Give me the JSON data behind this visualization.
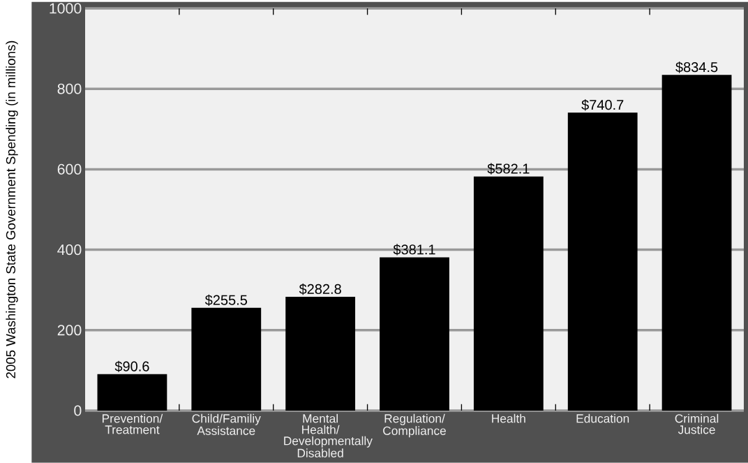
{
  "chart_data": {
    "type": "bar",
    "ylabel": "2005 Washington State Government Spending (in millions)",
    "categories": [
      "Prevention/ Treatment",
      "Child/Familiy Assistance",
      "Mental Health/ Developmentally Disabled",
      "Regulation/ Compliance",
      "Health",
      "Education",
      "Criminal Justice"
    ],
    "values": [
      90.6,
      255.5,
      282.8,
      381.1,
      582.1,
      740.7,
      834.5
    ],
    "value_labels": [
      "$90.6",
      "$255.5",
      "$282.8",
      "$381.1",
      "$582.1",
      "$740.7",
      "$834.5"
    ],
    "color": "#000000",
    "ylim": [
      0,
      1000
    ],
    "yticks": [
      0,
      200,
      400,
      600,
      800,
      1000
    ],
    "grid": "y"
  }
}
